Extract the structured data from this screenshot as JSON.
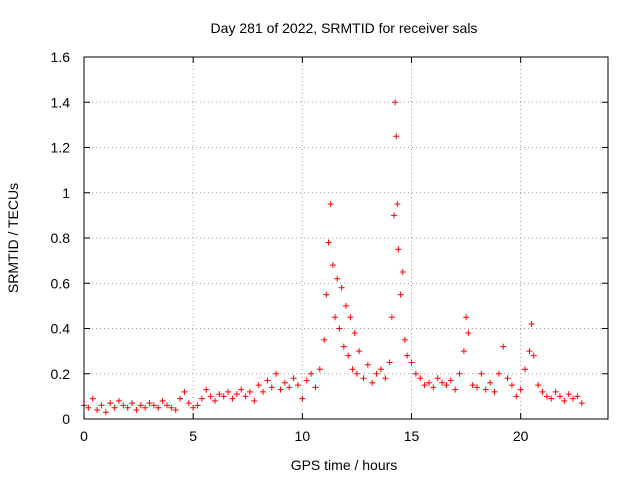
{
  "chart_data": {
    "type": "scatter",
    "title": "Day 281 of 2022, SRMTID for receiver sals",
    "xlabel": "GPS time / hours",
    "ylabel": "SRMTID / TECUs",
    "xlim": [
      0,
      24
    ],
    "ylim": [
      0,
      1.6
    ],
    "xticks": [
      0,
      5,
      10,
      15,
      20
    ],
    "yticks": [
      0,
      0.2,
      0.4,
      0.6,
      0.8,
      1,
      1.2,
      1.4,
      1.6
    ],
    "xtick_labels": [
      "0",
      "5",
      "10",
      "15",
      "20"
    ],
    "ytick_labels": [
      "0",
      "0.2",
      "0.4",
      "0.6",
      "0.8",
      "1",
      "1.2",
      "1.4",
      "1.6"
    ],
    "grid": true,
    "marker": "+",
    "color": "#ff0000",
    "series": [
      {
        "name": "SRMTID",
        "x": [
          0.0,
          0.2,
          0.4,
          0.6,
          0.8,
          1.0,
          1.2,
          1.4,
          1.6,
          1.8,
          2.0,
          2.2,
          2.4,
          2.6,
          2.8,
          3.0,
          3.2,
          3.4,
          3.6,
          3.8,
          4.0,
          4.2,
          4.4,
          4.6,
          4.8,
          5.0,
          5.2,
          5.4,
          5.6,
          5.8,
          6.0,
          6.2,
          6.4,
          6.6,
          6.8,
          7.0,
          7.2,
          7.4,
          7.6,
          7.8,
          8.0,
          8.2,
          8.4,
          8.6,
          8.8,
          9.0,
          9.2,
          9.4,
          9.6,
          9.8,
          10.0,
          10.2,
          10.4,
          10.6,
          10.8,
          11.0,
          11.1,
          11.2,
          11.3,
          11.4,
          11.5,
          11.6,
          11.7,
          11.8,
          11.9,
          12.0,
          12.1,
          12.2,
          12.3,
          12.4,
          12.5,
          12.6,
          12.8,
          13.0,
          13.2,
          13.4,
          13.6,
          13.8,
          14.0,
          14.1,
          14.2,
          14.25,
          14.3,
          14.35,
          14.4,
          14.5,
          14.6,
          14.7,
          14.8,
          15.0,
          15.2,
          15.4,
          15.6,
          15.8,
          16.0,
          16.2,
          16.4,
          16.6,
          16.8,
          17.0,
          17.2,
          17.4,
          17.5,
          17.6,
          17.8,
          18.0,
          18.2,
          18.4,
          18.6,
          18.8,
          19.0,
          19.2,
          19.4,
          19.6,
          19.8,
          20.0,
          20.2,
          20.4,
          20.5,
          20.6,
          20.8,
          21.0,
          21.2,
          21.4,
          21.6,
          21.8,
          22.0,
          22.2,
          22.4,
          22.6,
          22.8
        ],
        "y": [
          0.06,
          0.05,
          0.09,
          0.04,
          0.06,
          0.03,
          0.07,
          0.05,
          0.08,
          0.06,
          0.05,
          0.07,
          0.04,
          0.06,
          0.05,
          0.07,
          0.06,
          0.05,
          0.08,
          0.06,
          0.05,
          0.04,
          0.09,
          0.12,
          0.07,
          0.05,
          0.06,
          0.09,
          0.13,
          0.1,
          0.08,
          0.11,
          0.1,
          0.12,
          0.09,
          0.11,
          0.13,
          0.1,
          0.12,
          0.08,
          0.15,
          0.12,
          0.17,
          0.14,
          0.2,
          0.13,
          0.16,
          0.14,
          0.18,
          0.15,
          0.09,
          0.17,
          0.2,
          0.14,
          0.22,
          0.35,
          0.55,
          0.78,
          0.95,
          0.68,
          0.45,
          0.62,
          0.4,
          0.58,
          0.32,
          0.5,
          0.28,
          0.45,
          0.22,
          0.38,
          0.2,
          0.3,
          0.18,
          0.24,
          0.16,
          0.2,
          0.22,
          0.18,
          0.25,
          0.45,
          0.9,
          1.4,
          1.25,
          0.95,
          0.75,
          0.55,
          0.65,
          0.35,
          0.28,
          0.25,
          0.2,
          0.18,
          0.15,
          0.16,
          0.14,
          0.18,
          0.16,
          0.15,
          0.17,
          0.13,
          0.2,
          0.3,
          0.45,
          0.38,
          0.15,
          0.14,
          0.2,
          0.13,
          0.16,
          0.12,
          0.2,
          0.32,
          0.18,
          0.15,
          0.1,
          0.13,
          0.22,
          0.3,
          0.42,
          0.28,
          0.15,
          0.12,
          0.1,
          0.09,
          0.12,
          0.1,
          0.08,
          0.11,
          0.09,
          0.1,
          0.07
        ]
      }
    ]
  }
}
